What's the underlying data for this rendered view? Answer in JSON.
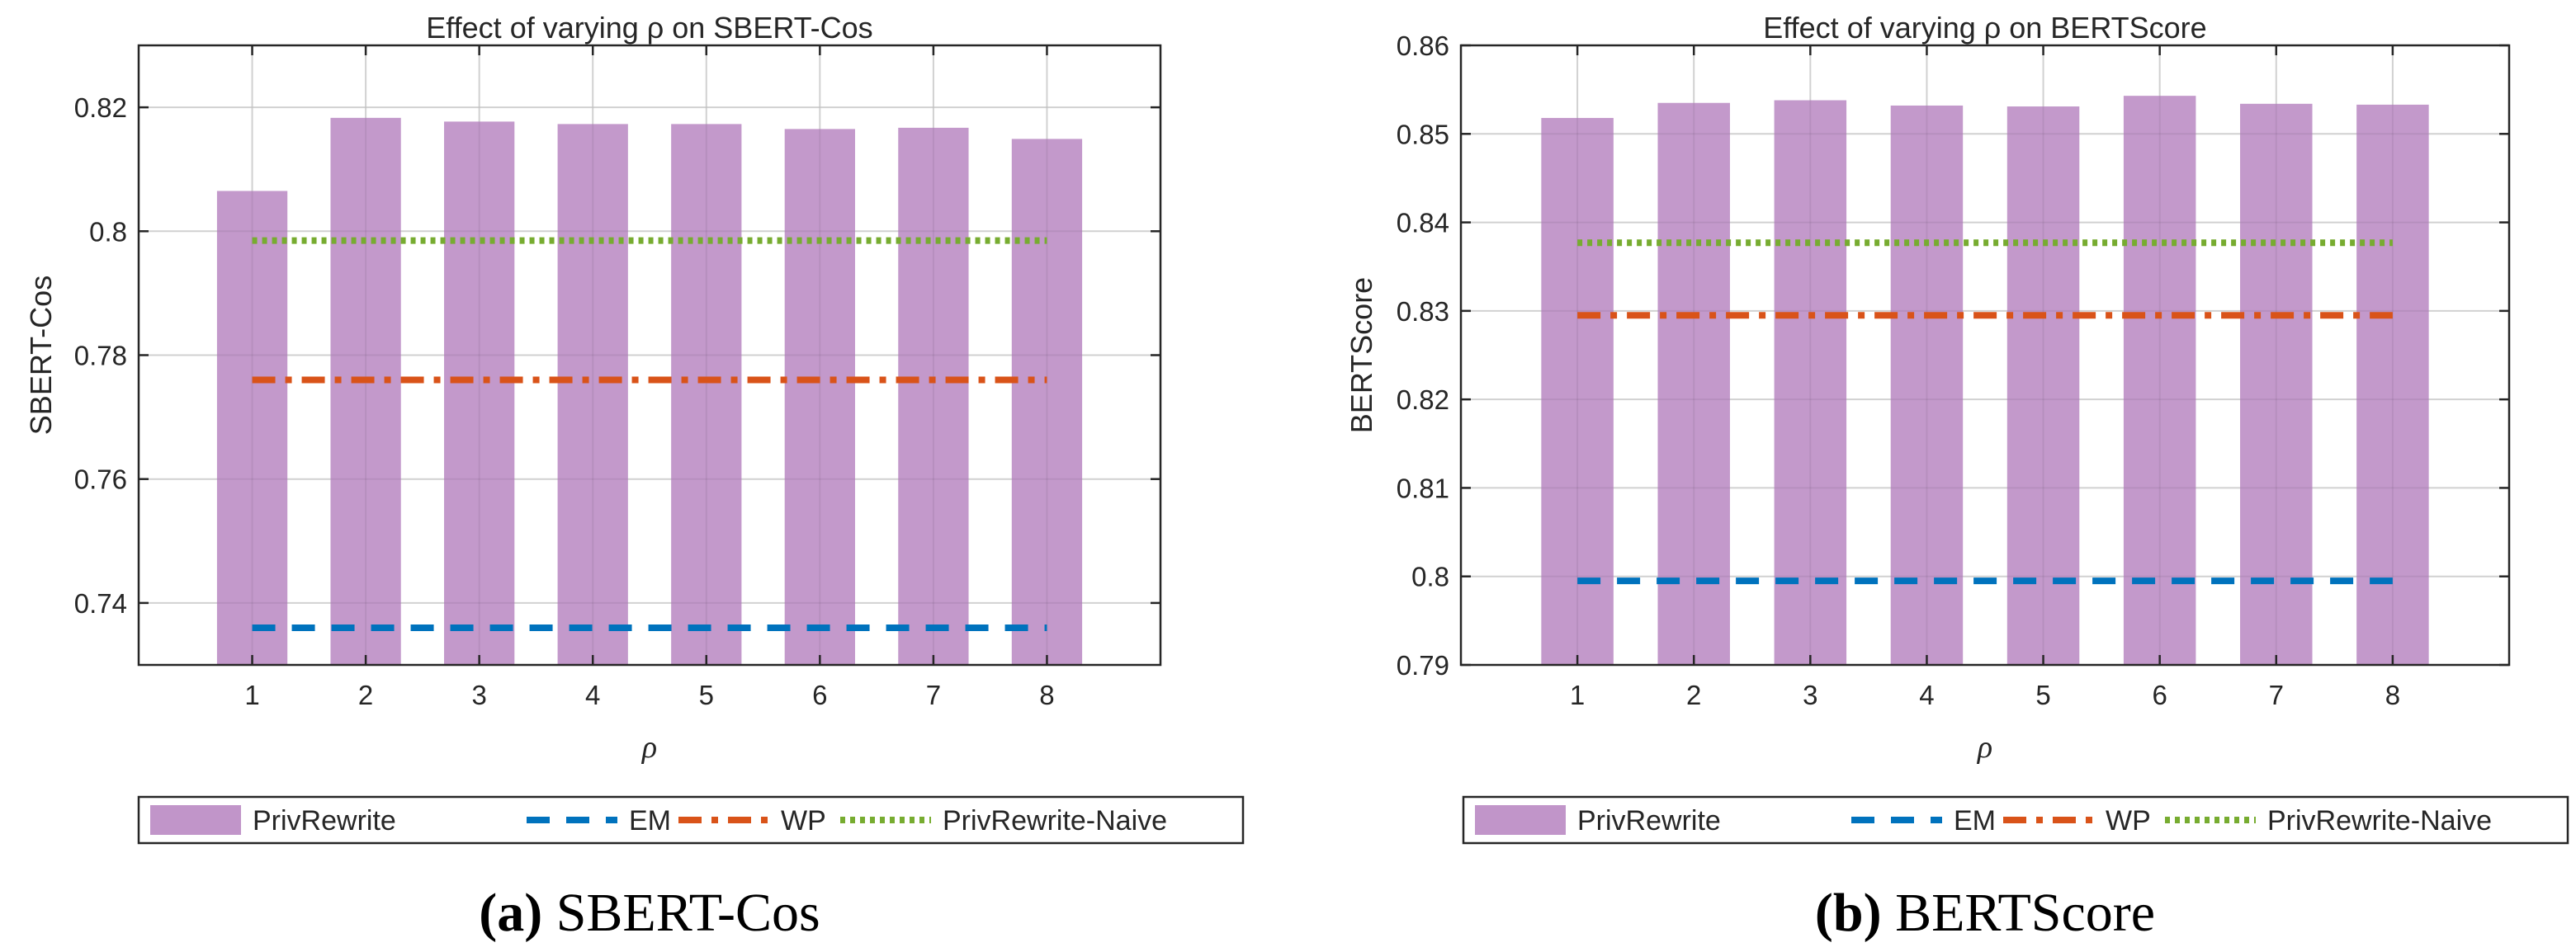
{
  "colors": {
    "bar": "#c195c9",
    "em": "#0072bd",
    "wp": "#d95319",
    "naive": "#77ac30",
    "grid": "#dfdfdf",
    "axis": "#262626"
  },
  "chart_data": [
    {
      "type": "bar",
      "title": "Effect of varying ρ on SBERT-Cos",
      "xlabel": "ρ",
      "ylabel": "SBERT-Cos",
      "caption_tag": "(a)",
      "caption_text": "SBERT-Cos",
      "categories": [
        "1",
        "2",
        "3",
        "4",
        "5",
        "6",
        "7",
        "8"
      ],
      "xlim": [
        0,
        9
      ],
      "ylim": [
        0.73,
        0.83
      ],
      "yticks": [
        0.74,
        0.76,
        0.78,
        0.8,
        0.82
      ],
      "ytick_labels": [
        "0.74",
        "0.76",
        "0.78",
        "0.8",
        "0.82"
      ],
      "grid": true,
      "legend_position": "bottom",
      "series": [
        {
          "name": "PrivRewrite",
          "kind": "bar",
          "values": [
            0.8065,
            0.8183,
            0.8177,
            0.8173,
            0.8173,
            0.8165,
            0.8167,
            0.8149
          ]
        },
        {
          "name": "EM",
          "kind": "line",
          "style": "dashed",
          "values": [
            0.736,
            0.736,
            0.736,
            0.736,
            0.736,
            0.736,
            0.736,
            0.736
          ]
        },
        {
          "name": "WP",
          "kind": "line",
          "style": "dashdot",
          "values": [
            0.776,
            0.776,
            0.776,
            0.776,
            0.776,
            0.776,
            0.776,
            0.776
          ]
        },
        {
          "name": "PrivRewrite-Naive",
          "kind": "line",
          "style": "dotted",
          "values": [
            0.7985,
            0.7985,
            0.7985,
            0.7985,
            0.7985,
            0.7985,
            0.7985,
            0.7985
          ]
        }
      ]
    },
    {
      "type": "bar",
      "title": "Effect of varying ρ on BERTScore",
      "xlabel": "ρ",
      "ylabel": "BERTScore",
      "caption_tag": "(b)",
      "caption_text": "BERTScore",
      "categories": [
        "1",
        "2",
        "3",
        "4",
        "5",
        "6",
        "7",
        "8"
      ],
      "xlim": [
        0,
        9
      ],
      "ylim": [
        0.79,
        0.86
      ],
      "yticks": [
        0.79,
        0.8,
        0.81,
        0.82,
        0.83,
        0.84,
        0.85,
        0.86
      ],
      "ytick_labels": [
        "0.79",
        "0.8",
        "0.81",
        "0.82",
        "0.83",
        "0.84",
        "0.85",
        "0.86"
      ],
      "grid": true,
      "legend_position": "bottom",
      "series": [
        {
          "name": "PrivRewrite",
          "kind": "bar",
          "values": [
            0.8518,
            0.8535,
            0.8538,
            0.8532,
            0.8531,
            0.8543,
            0.8534,
            0.8533
          ]
        },
        {
          "name": "EM",
          "kind": "line",
          "style": "dashed",
          "values": [
            0.7995,
            0.7995,
            0.7995,
            0.7995,
            0.7995,
            0.7995,
            0.7995,
            0.7995
          ]
        },
        {
          "name": "WP",
          "kind": "line",
          "style": "dashdot",
          "values": [
            0.8295,
            0.8295,
            0.8295,
            0.8295,
            0.8295,
            0.8295,
            0.8295,
            0.8295
          ]
        },
        {
          "name": "PrivRewrite-Naive",
          "kind": "line",
          "style": "dotted",
          "values": [
            0.8377,
            0.8377,
            0.8377,
            0.8377,
            0.8377,
            0.8377,
            0.8377,
            0.8377
          ]
        }
      ]
    }
  ]
}
